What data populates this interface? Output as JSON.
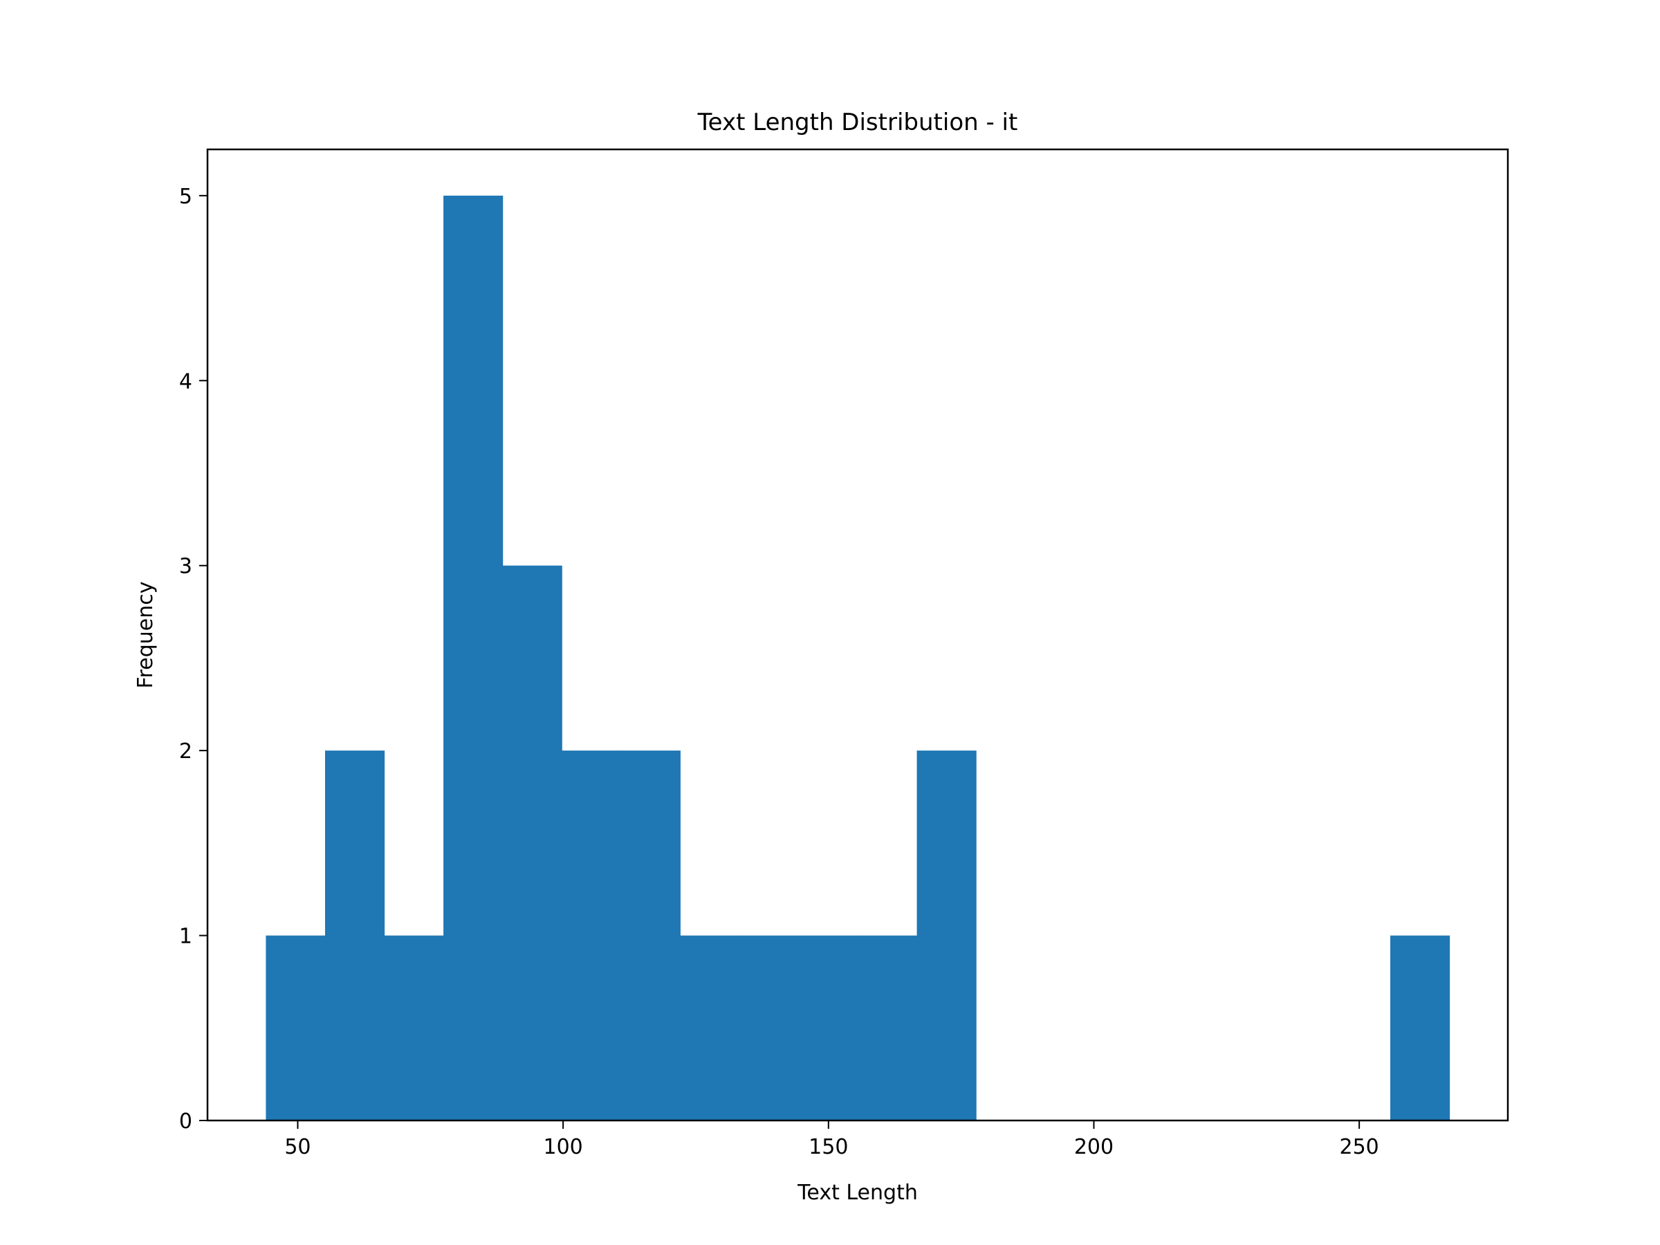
{
  "chart_data": {
    "type": "bar",
    "title": "Text Length Distribution - it",
    "xlabel": "Text Length",
    "ylabel": "Frequency",
    "xlim": [
      33,
      278
    ],
    "ylim": [
      0,
      5.25
    ],
    "x_ticks": [
      50,
      100,
      150,
      200,
      250
    ],
    "y_ticks": [
      0,
      1,
      2,
      3,
      4,
      5
    ],
    "grid": false,
    "legend": "none",
    "bar_color": "#1f77b4",
    "bins": [
      {
        "x0": 44.0,
        "x1": 55.15,
        "count": 1
      },
      {
        "x0": 55.15,
        "x1": 66.3,
        "count": 2
      },
      {
        "x0": 66.3,
        "x1": 77.45,
        "count": 1
      },
      {
        "x0": 77.45,
        "x1": 88.6,
        "count": 5
      },
      {
        "x0": 88.6,
        "x1": 99.75,
        "count": 3
      },
      {
        "x0": 99.75,
        "x1": 110.9,
        "count": 2
      },
      {
        "x0": 110.9,
        "x1": 122.05,
        "count": 2
      },
      {
        "x0": 122.05,
        "x1": 133.2,
        "count": 1
      },
      {
        "x0": 133.2,
        "x1": 144.35,
        "count": 1
      },
      {
        "x0": 144.35,
        "x1": 155.5,
        "count": 1
      },
      {
        "x0": 155.5,
        "x1": 166.65,
        "count": 1
      },
      {
        "x0": 166.65,
        "x1": 177.8,
        "count": 2
      },
      {
        "x0": 177.8,
        "x1": 188.95,
        "count": 0
      },
      {
        "x0": 188.95,
        "x1": 200.1,
        "count": 0
      },
      {
        "x0": 200.1,
        "x1": 211.25,
        "count": 0
      },
      {
        "x0": 211.25,
        "x1": 222.4,
        "count": 0
      },
      {
        "x0": 222.4,
        "x1": 233.55,
        "count": 0
      },
      {
        "x0": 233.55,
        "x1": 244.7,
        "count": 0
      },
      {
        "x0": 244.7,
        "x1": 255.85,
        "count": 0
      },
      {
        "x0": 255.85,
        "x1": 267.0,
        "count": 1
      }
    ]
  }
}
